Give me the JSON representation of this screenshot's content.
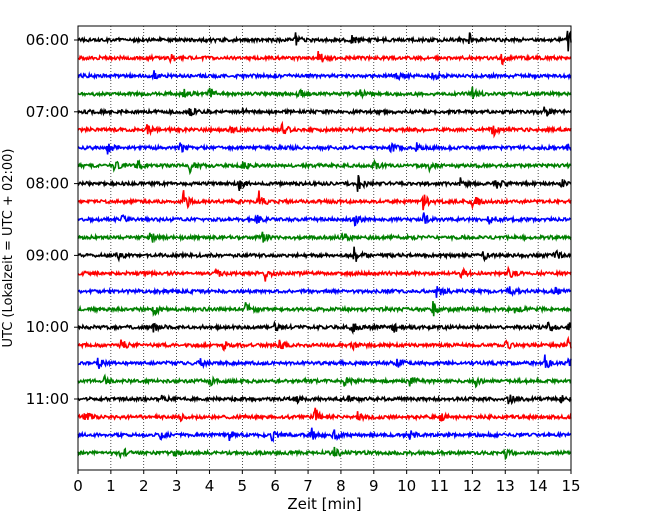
{
  "chart_data": {
    "type": "line",
    "title": "",
    "xlabel": "Zeit  [min]",
    "ylabel": "UTC (Lokalzeit = UTC + 02:00)",
    "xlim": [
      0,
      15
    ],
    "x_ticks": [
      "0",
      "1",
      "2",
      "3",
      "4",
      "5",
      "6",
      "7",
      "8",
      "9",
      "10",
      "11",
      "12",
      "13",
      "14",
      "15"
    ],
    "y_ticks": [
      "06:00",
      "07:00",
      "08:00",
      "09:00",
      "10:00",
      "11:00"
    ],
    "trace_interval_minutes": 15,
    "grid": {
      "vertical": true,
      "horizontal": false,
      "style": "dotted"
    },
    "colors": [
      "#000000",
      "#ff0000",
      "#0000ff",
      "#008000"
    ],
    "series": [
      {
        "start": "06:00",
        "color": "#000000",
        "events": [
          [
            6.6,
            1.0
          ],
          [
            8.3,
            0.8
          ],
          [
            11.9,
            0.9
          ],
          [
            14.9,
            1.4
          ]
        ]
      },
      {
        "start": "06:15",
        "color": "#ff0000",
        "events": [
          [
            2.8,
            0.6
          ],
          [
            7.3,
            1.0
          ],
          [
            12.9,
            0.9
          ]
        ]
      },
      {
        "start": "06:30",
        "color": "#0000ff",
        "events": [
          [
            2.3,
            0.7
          ],
          [
            9.7,
            0.5
          ],
          [
            10.8,
            0.6
          ]
        ]
      },
      {
        "start": "06:45",
        "color": "#008000",
        "events": [
          [
            3.2,
            0.6
          ],
          [
            4.0,
            1.2
          ],
          [
            6.7,
            0.7
          ],
          [
            8.6,
            0.7
          ],
          [
            12.0,
            0.7
          ]
        ]
      },
      {
        "start": "07:00",
        "color": "#000000",
        "events": [
          [
            3.4,
            0.6
          ],
          [
            4.9,
            0.7
          ],
          [
            14.2,
            0.9
          ]
        ]
      },
      {
        "start": "07:15",
        "color": "#ff0000",
        "events": [
          [
            2.1,
            0.7
          ],
          [
            4.6,
            0.5
          ],
          [
            6.2,
            1.0
          ],
          [
            12.6,
            1.0
          ]
        ]
      },
      {
        "start": "07:30",
        "color": "#0000ff",
        "events": [
          [
            0.9,
            0.8
          ],
          [
            3.1,
            0.7
          ],
          [
            9.5,
            0.8
          ],
          [
            10.3,
            0.7
          ],
          [
            14.9,
            0.8
          ]
        ]
      },
      {
        "start": "07:45",
        "color": "#008000",
        "events": [
          [
            1.1,
            0.8
          ],
          [
            1.8,
            0.7
          ],
          [
            3.4,
            0.8
          ],
          [
            5.0,
            0.6
          ],
          [
            9.0,
            0.6
          ],
          [
            10.7,
            0.8
          ]
        ]
      },
      {
        "start": "08:00",
        "color": "#000000",
        "events": [
          [
            4.9,
            0.8
          ],
          [
            8.5,
            1.2
          ],
          [
            11.6,
            0.8
          ],
          [
            12.7,
            0.8
          ],
          [
            14.7,
            0.7
          ]
        ]
      },
      {
        "start": "08:15",
        "color": "#ff0000",
        "events": [
          [
            3.2,
            1.6
          ],
          [
            5.5,
            1.3
          ],
          [
            10.5,
            1.0
          ],
          [
            12.0,
            0.9
          ]
        ]
      },
      {
        "start": "08:30",
        "color": "#0000ff",
        "events": [
          [
            1.3,
            0.6
          ],
          [
            5.4,
            0.7
          ],
          [
            8.4,
            0.7
          ],
          [
            10.5,
            0.9
          ],
          [
            12.5,
            1.0
          ]
        ]
      },
      {
        "start": "08:45",
        "color": "#008000",
        "events": [
          [
            2.2,
            0.9
          ],
          [
            5.6,
            0.6
          ],
          [
            8.0,
            0.8
          ]
        ]
      },
      {
        "start": "09:00",
        "color": "#000000",
        "events": [
          [
            1.2,
            0.6
          ],
          [
            8.4,
            1.0
          ],
          [
            12.3,
            0.7
          ],
          [
            14.5,
            0.7
          ]
        ]
      },
      {
        "start": "09:15",
        "color": "#ff0000",
        "events": [
          [
            4.2,
            0.6
          ],
          [
            5.7,
            0.9
          ],
          [
            11.6,
            1.0
          ],
          [
            13.1,
            0.8
          ]
        ]
      },
      {
        "start": "09:30",
        "color": "#0000ff",
        "events": [
          [
            10.9,
            0.9
          ],
          [
            13.1,
            0.6
          ],
          [
            14.5,
            0.8
          ]
        ]
      },
      {
        "start": "09:45",
        "color": "#008000",
        "events": [
          [
            2.3,
            1.1
          ],
          [
            5.1,
            0.8
          ],
          [
            10.8,
            0.8
          ],
          [
            13.3,
            0.7
          ]
        ]
      },
      {
        "start": "10:00",
        "color": "#000000",
        "events": [
          [
            2.3,
            0.7
          ],
          [
            5.9,
            1.1
          ],
          [
            8.3,
            0.9
          ],
          [
            9.6,
            0.8
          ],
          [
            14.3,
            1.0
          ],
          [
            14.9,
            1.1
          ]
        ]
      },
      {
        "start": "10:15",
        "color": "#ff0000",
        "events": [
          [
            1.3,
            0.8
          ],
          [
            4.4,
            0.6
          ],
          [
            6.1,
            0.8
          ],
          [
            8.3,
            0.7
          ],
          [
            13.0,
            0.8
          ],
          [
            14.9,
            0.7
          ]
        ]
      },
      {
        "start": "10:30",
        "color": "#0000ff",
        "events": [
          [
            0.6,
            0.7
          ],
          [
            3.7,
            0.6
          ],
          [
            9.7,
            0.7
          ],
          [
            14.2,
            0.9
          ],
          [
            14.9,
            1.2
          ]
        ]
      },
      {
        "start": "10:45",
        "color": "#008000",
        "events": [
          [
            0.8,
            0.6
          ],
          [
            4.0,
            0.6
          ],
          [
            8.1,
            0.6
          ],
          [
            10.1,
            0.8
          ],
          [
            12.1,
            0.6
          ]
        ]
      },
      {
        "start": "11:00",
        "color": "#000000",
        "events": [
          [
            2.5,
            0.5
          ],
          [
            6.6,
            0.6
          ],
          [
            8.2,
            0.7
          ],
          [
            13.1,
            0.8
          ],
          [
            14.7,
            0.6
          ]
        ]
      },
      {
        "start": "11:15",
        "color": "#ff0000",
        "events": [
          [
            0.2,
            0.9
          ],
          [
            3.1,
            0.6
          ],
          [
            7.2,
            1.4
          ],
          [
            8.5,
            0.6
          ],
          [
            11.0,
            0.7
          ]
        ]
      },
      {
        "start": "11:30",
        "color": "#0000ff",
        "events": [
          [
            2.5,
            0.7
          ],
          [
            4.6,
            0.6
          ],
          [
            5.9,
            0.8
          ],
          [
            7.1,
            0.8
          ],
          [
            7.7,
            1.6
          ],
          [
            10.1,
            0.6
          ]
        ]
      },
      {
        "start": "11:45",
        "color": "#008000",
        "events": [
          [
            1.3,
            0.8
          ],
          [
            2.9,
            0.6
          ],
          [
            7.8,
            0.8
          ],
          [
            13.0,
            0.6
          ]
        ]
      }
    ]
  }
}
